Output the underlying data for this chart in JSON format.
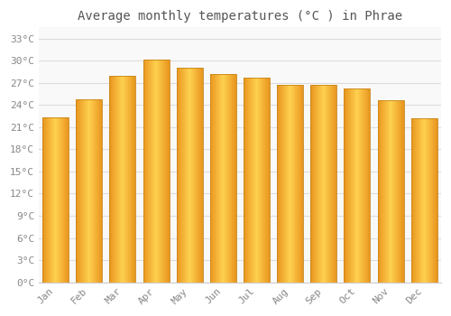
{
  "title": "Average monthly temperatures (°C ) in Phrae",
  "months": [
    "Jan",
    "Feb",
    "Mar",
    "Apr",
    "May",
    "Jun",
    "Jul",
    "Aug",
    "Sep",
    "Oct",
    "Nov",
    "Dec"
  ],
  "values": [
    22.3,
    24.8,
    28.0,
    30.2,
    29.1,
    28.2,
    27.7,
    26.7,
    26.7,
    26.3,
    24.6,
    22.2
  ],
  "bar_color_left": "#E8961E",
  "bar_color_center": "#FFD050",
  "bar_color_right": "#E8961E",
  "bar_edge_color": "#C8851A",
  "background_color": "#ffffff",
  "plot_bg_color": "#f9f9f9",
  "grid_color": "#dddddd",
  "ytick_labels": [
    "0°C",
    "3°C",
    "6°C",
    "9°C",
    "12°C",
    "15°C",
    "18°C",
    "21°C",
    "24°C",
    "27°C",
    "30°C",
    "33°C"
  ],
  "ytick_values": [
    0,
    3,
    6,
    9,
    12,
    15,
    18,
    21,
    24,
    27,
    30,
    33
  ],
  "ylim": [
    0,
    34.5
  ],
  "title_fontsize": 10,
  "tick_fontsize": 8,
  "tick_font_color": "#888888",
  "title_font_color": "#555555",
  "bar_width": 0.78,
  "border_color": "#cccccc"
}
